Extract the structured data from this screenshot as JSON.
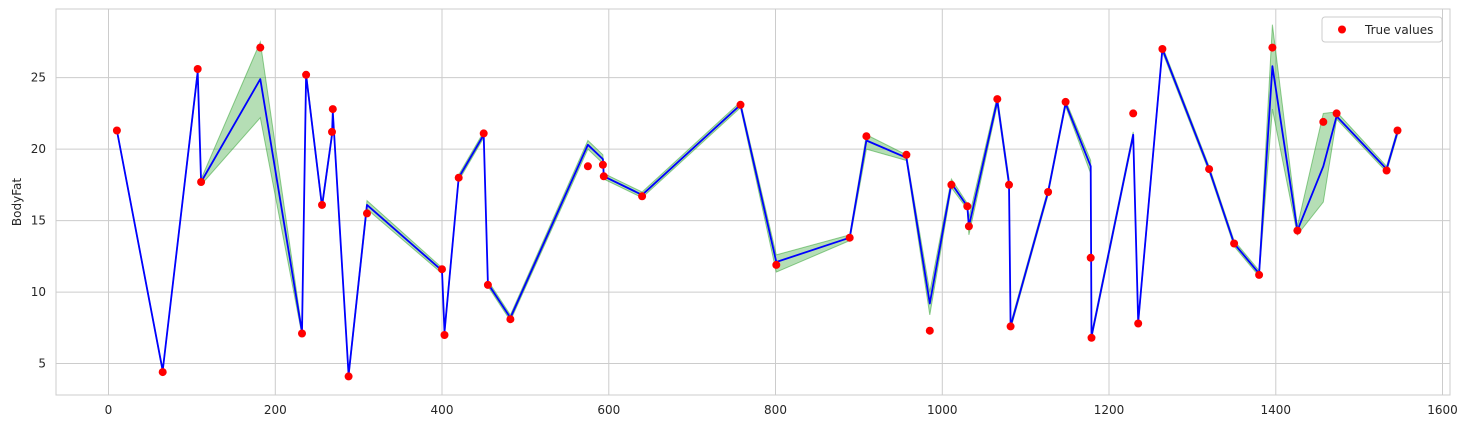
{
  "chart_data": {
    "type": "line",
    "title": "",
    "xlabel": "",
    "ylabel": "BodyFat",
    "xlim": [
      -63,
      1609
    ],
    "ylim": [
      2.8,
      29.8
    ],
    "xticks": [
      0,
      200,
      400,
      600,
      800,
      1000,
      1200,
      1400,
      1600
    ],
    "yticks": [
      5,
      10,
      15,
      20,
      25
    ],
    "grid": true,
    "legend": {
      "placement": "top-right",
      "entries": [
        "True values"
      ]
    },
    "colors": {
      "predicted": "#0000ff",
      "band": "#2ca02c",
      "true": "#ff0000",
      "grid": "#cccccc",
      "spine": "#cccccc"
    },
    "series": [
      {
        "type": "scatter",
        "name": "True values",
        "points": [
          [
            10,
            21.3
          ],
          [
            65,
            4.4
          ],
          [
            107,
            25.6
          ],
          [
            111,
            17.7
          ],
          [
            182,
            27.1
          ],
          [
            232,
            7.1
          ],
          [
            237,
            25.2
          ],
          [
            256,
            16.1
          ],
          [
            268,
            21.2
          ],
          [
            269,
            22.8
          ],
          [
            288,
            4.1
          ],
          [
            310,
            15.5
          ],
          [
            400,
            11.6
          ],
          [
            403,
            7.0
          ],
          [
            420,
            18.0
          ],
          [
            450,
            21.1
          ],
          [
            455,
            10.5
          ],
          [
            482,
            8.1
          ],
          [
            575,
            18.8
          ],
          [
            593,
            18.9
          ],
          [
            594,
            18.1
          ],
          [
            640,
            16.7
          ],
          [
            758,
            23.1
          ],
          [
            801,
            11.9
          ],
          [
            889,
            13.8
          ],
          [
            909,
            20.9
          ],
          [
            957,
            19.6
          ],
          [
            985,
            7.3
          ],
          [
            1011,
            17.5
          ],
          [
            1030,
            16.0
          ],
          [
            1032,
            14.6
          ],
          [
            1066,
            23.5
          ],
          [
            1080,
            17.5
          ],
          [
            1082,
            7.6
          ],
          [
            1127,
            17.0
          ],
          [
            1148,
            23.3
          ],
          [
            1178,
            12.4
          ],
          [
            1179,
            6.8
          ],
          [
            1229,
            22.5
          ],
          [
            1235,
            7.8
          ],
          [
            1264,
            27.0
          ],
          [
            1320,
            18.6
          ],
          [
            1350,
            13.4
          ],
          [
            1380,
            11.2
          ],
          [
            1396,
            27.1
          ],
          [
            1426,
            14.3
          ],
          [
            1457,
            21.9
          ],
          [
            1473,
            22.5
          ],
          [
            1533,
            18.5
          ],
          [
            1546,
            21.3
          ]
        ]
      },
      {
        "type": "line",
        "points": [
          [
            10,
            21.3
          ],
          [
            65,
            4.5
          ],
          [
            107,
            25.4
          ],
          [
            111,
            17.7
          ],
          [
            182,
            24.9
          ],
          [
            232,
            7.2
          ],
          [
            237,
            25.2
          ],
          [
            256,
            16.0
          ],
          [
            268,
            21.0
          ],
          [
            269,
            22.6
          ],
          [
            288,
            4.2
          ],
          [
            310,
            16.1
          ],
          [
            400,
            11.5
          ],
          [
            403,
            7.2
          ],
          [
            420,
            18.0
          ],
          [
            450,
            21.0
          ],
          [
            455,
            10.6
          ],
          [
            482,
            8.2
          ],
          [
            575,
            20.3
          ],
          [
            593,
            19.3
          ],
          [
            594,
            18.1
          ],
          [
            640,
            16.8
          ],
          [
            758,
            23.1
          ],
          [
            801,
            12.1
          ],
          [
            889,
            13.8
          ],
          [
            909,
            20.6
          ],
          [
            957,
            19.4
          ],
          [
            985,
            9.2
          ],
          [
            1011,
            17.6
          ],
          [
            1030,
            16.0
          ],
          [
            1032,
            14.6
          ],
          [
            1066,
            23.4
          ],
          [
            1080,
            17.6
          ],
          [
            1082,
            7.6
          ],
          [
            1127,
            17.0
          ],
          [
            1148,
            23.2
          ],
          [
            1178,
            18.8
          ],
          [
            1179,
            6.9
          ],
          [
            1229,
            21.0
          ],
          [
            1235,
            7.9
          ],
          [
            1264,
            27.0
          ],
          [
            1320,
            18.6
          ],
          [
            1350,
            13.4
          ],
          [
            1380,
            11.3
          ],
          [
            1396,
            25.8
          ],
          [
            1426,
            14.3
          ],
          [
            1457,
            18.8
          ],
          [
            1473,
            22.3
          ],
          [
            1533,
            18.6
          ],
          [
            1546,
            21.2
          ]
        ]
      },
      {
        "type": "area",
        "lower": [
          21.2,
          4.4,
          25.2,
          17.5,
          22.2,
          7.0,
          25.0,
          15.8,
          20.8,
          22.4,
          4.0,
          15.8,
          11.3,
          7.0,
          17.8,
          20.8,
          10.4,
          8.0,
          20.0,
          19.0,
          17.9,
          16.6,
          22.9,
          11.4,
          13.6,
          20.0,
          19.2,
          8.4,
          17.3,
          15.8,
          14.0,
          23.1,
          17.3,
          7.4,
          16.8,
          23.0,
          18.3,
          6.7,
          20.8,
          7.7,
          26.8,
          18.4,
          13.2,
          11.1,
          22.8,
          14.0,
          16.3,
          22.1,
          18.4,
          21.0
        ],
        "upper": [
          21.4,
          4.6,
          25.6,
          17.9,
          27.5,
          7.4,
          25.4,
          16.2,
          21.2,
          22.8,
          4.4,
          16.4,
          11.7,
          7.4,
          18.2,
          21.2,
          10.8,
          8.4,
          20.6,
          19.6,
          18.3,
          17.0,
          23.3,
          12.6,
          14.0,
          21.0,
          19.6,
          10.0,
          17.9,
          16.2,
          15.2,
          23.7,
          17.9,
          7.8,
          17.2,
          23.4,
          19.2,
          7.1,
          21.2,
          8.1,
          27.2,
          18.8,
          13.6,
          11.5,
          28.7,
          14.6,
          22.5,
          22.6,
          18.8,
          21.4
        ]
      }
    ]
  }
}
